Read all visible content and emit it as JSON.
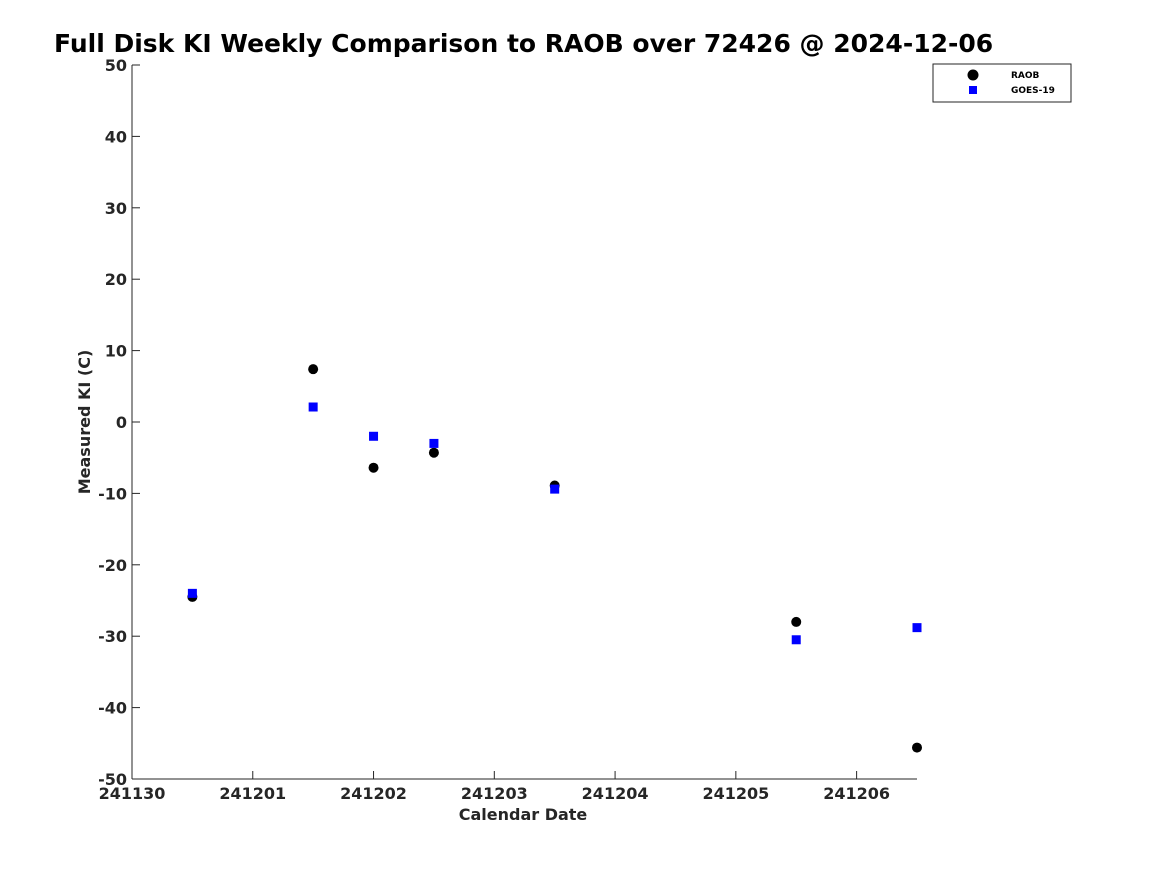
{
  "chart_data": {
    "type": "scatter",
    "title": "Full Disk KI Weekly Comparison to RAOB over 72426 @ 2024-12-06",
    "xlabel": "Calendar Date",
    "ylabel": "Measured KI (C)",
    "xlim": [
      0,
      6.5
    ],
    "ylim": [
      -50,
      50
    ],
    "x_ticks": [
      0,
      1,
      2,
      3,
      4,
      5,
      6
    ],
    "x_tick_labels": [
      "241130",
      "241201",
      "241202",
      "241203",
      "241204",
      "241205",
      "241206"
    ],
    "y_ticks": [
      50,
      40,
      30,
      20,
      10,
      0,
      -10,
      -20,
      -30,
      -40,
      -50
    ],
    "y_tick_labels": [
      "50",
      "40",
      "30",
      "20",
      "10",
      "0",
      "-10",
      "-20",
      "-30",
      "-40",
      "-50"
    ],
    "grid": false,
    "legend_position": "top-right",
    "series": [
      {
        "name": "RAOB",
        "marker": "circle",
        "color": "#000000",
        "x": [
          0.5,
          1.5,
          2.0,
          2.5,
          3.5,
          5.5,
          6.5
        ],
        "values": [
          -24.5,
          7.4,
          -6.4,
          -4.3,
          -8.9,
          -28.0,
          -45.6
        ]
      },
      {
        "name": "GOES-19",
        "marker": "square",
        "color": "#0000ff",
        "x": [
          0.5,
          1.5,
          2.0,
          2.5,
          3.5,
          5.5,
          6.5
        ],
        "values": [
          -24.0,
          2.1,
          -2.0,
          -3.0,
          -9.4,
          -30.5,
          -28.8
        ]
      }
    ]
  }
}
